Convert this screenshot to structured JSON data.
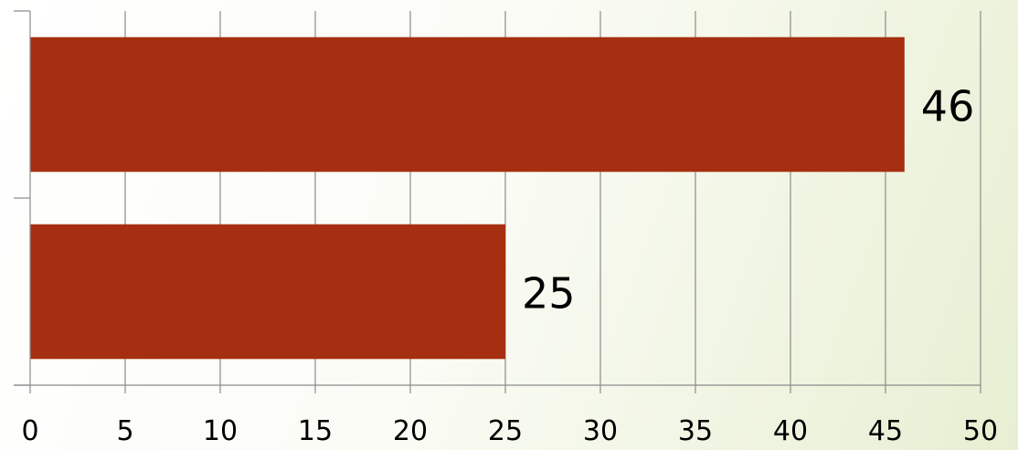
{
  "chart_data": {
    "type": "bar",
    "orientation": "horizontal",
    "categories": [
      "",
      ""
    ],
    "values": [
      46,
      25
    ],
    "data_labels": [
      "46",
      "25"
    ],
    "x_ticks": [
      "0",
      "5",
      "10",
      "15",
      "20",
      "25",
      "30",
      "35",
      "40",
      "45",
      "50"
    ],
    "xlim": [
      0,
      50
    ],
    "title": "",
    "xlabel": "",
    "ylabel": "",
    "grid": "vertical",
    "legend": "none",
    "bar_color": "#a52f10",
    "grid_color": "#8c8c8c"
  }
}
